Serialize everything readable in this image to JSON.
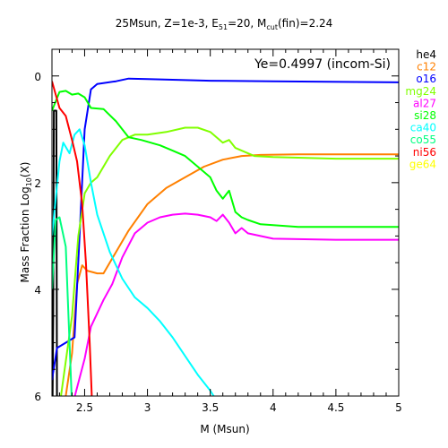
{
  "chart_data": {
    "type": "line",
    "title_main": "25Msun, Z=1e-3, E",
    "title_sub1": "51",
    "title_mid": "=20, M",
    "title_sub2": "cut",
    "title_end": "(fin)=2.24",
    "xlabel": "M (Msun)",
    "ylabel_main": "Mass Fraction Log",
    "ylabel_sub": "10",
    "ylabel_end": "(X)",
    "annotation": "Ye=0.4997 (incom-Si)",
    "xlim": [
      2.24,
      5
    ],
    "ylim": [
      -6,
      0.5
    ],
    "x_ticks": [
      2.5,
      3,
      3.5,
      4,
      4.5,
      5
    ],
    "x_tick_labels": [
      "2.5",
      "3",
      "3.5",
      "4",
      "4.5",
      "5"
    ],
    "y_ticks": [
      0,
      -2,
      -4,
      -6
    ],
    "y_tick_labels": [
      "0",
      "2",
      "4",
      "6"
    ],
    "series": [
      {
        "name": "he4",
        "color": "#000000",
        "points": [
          [
            2.24,
            -6.2
          ],
          [
            2.245,
            -6
          ],
          [
            2.25,
            -4.5
          ],
          [
            2.255,
            -0.65
          ],
          [
            2.275,
            -0.65
          ],
          [
            2.28,
            -6.2
          ]
        ]
      },
      {
        "name": "c12",
        "color": "#ff8000",
        "points": [
          [
            2.24,
            -6.2
          ],
          [
            2.3,
            -6.2
          ],
          [
            2.35,
            -6.0
          ],
          [
            2.4,
            -5.2
          ],
          [
            2.44,
            -3.9
          ],
          [
            2.48,
            -3.55
          ],
          [
            2.52,
            -3.65
          ],
          [
            2.6,
            -3.7
          ],
          [
            2.65,
            -3.7
          ],
          [
            2.75,
            -3.3
          ],
          [
            2.85,
            -2.9
          ],
          [
            3.0,
            -2.4
          ],
          [
            3.15,
            -2.1
          ],
          [
            3.3,
            -1.9
          ],
          [
            3.45,
            -1.7
          ],
          [
            3.6,
            -1.57
          ],
          [
            3.75,
            -1.5
          ],
          [
            3.9,
            -1.48
          ],
          [
            4.2,
            -1.47
          ],
          [
            5.0,
            -1.47
          ]
        ]
      },
      {
        "name": "o16",
        "color": "#0000ff",
        "points": [
          [
            2.24,
            -5.7
          ],
          [
            2.28,
            -5.1
          ],
          [
            2.35,
            -5.0
          ],
          [
            2.42,
            -4.9
          ],
          [
            2.46,
            -3.0
          ],
          [
            2.5,
            -1.0
          ],
          [
            2.55,
            -0.25
          ],
          [
            2.6,
            -0.15
          ],
          [
            2.75,
            -0.1
          ],
          [
            2.85,
            -0.05
          ],
          [
            3.0,
            -0.06
          ],
          [
            3.5,
            -0.09
          ],
          [
            4.0,
            -0.1
          ],
          [
            5.0,
            -0.12
          ]
        ]
      },
      {
        "name": "mg24",
        "color": "#80ff00",
        "points": [
          [
            2.24,
            -6.2
          ],
          [
            2.3,
            -6.2
          ],
          [
            2.4,
            -4.5
          ],
          [
            2.45,
            -3.0
          ],
          [
            2.5,
            -2.2
          ],
          [
            2.55,
            -2.0
          ],
          [
            2.6,
            -1.9
          ],
          [
            2.7,
            -1.5
          ],
          [
            2.8,
            -1.2
          ],
          [
            2.9,
            -1.1
          ],
          [
            3.0,
            -1.1
          ],
          [
            3.15,
            -1.05
          ],
          [
            3.3,
            -0.97
          ],
          [
            3.4,
            -0.97
          ],
          [
            3.5,
            -1.05
          ],
          [
            3.6,
            -1.25
          ],
          [
            3.65,
            -1.2
          ],
          [
            3.7,
            -1.35
          ],
          [
            3.75,
            -1.4
          ],
          [
            3.85,
            -1.5
          ],
          [
            4.0,
            -1.52
          ],
          [
            4.5,
            -1.55
          ],
          [
            5.0,
            -1.55
          ]
        ]
      },
      {
        "name": "al27",
        "color": "#ff00ff",
        "points": [
          [
            2.24,
            -6.2
          ],
          [
            2.4,
            -6.2
          ],
          [
            2.5,
            -5.3
          ],
          [
            2.55,
            -4.7
          ],
          [
            2.65,
            -4.2
          ],
          [
            2.72,
            -3.9
          ],
          [
            2.8,
            -3.4
          ],
          [
            2.9,
            -2.95
          ],
          [
            3.0,
            -2.75
          ],
          [
            3.1,
            -2.65
          ],
          [
            3.2,
            -2.6
          ],
          [
            3.3,
            -2.58
          ],
          [
            3.4,
            -2.6
          ],
          [
            3.5,
            -2.65
          ],
          [
            3.55,
            -2.72
          ],
          [
            3.6,
            -2.6
          ],
          [
            3.65,
            -2.75
          ],
          [
            3.7,
            -2.95
          ],
          [
            3.75,
            -2.85
          ],
          [
            3.8,
            -2.95
          ],
          [
            4.0,
            -3.05
          ],
          [
            4.5,
            -3.07
          ],
          [
            5.0,
            -3.07
          ]
        ]
      },
      {
        "name": "si28",
        "color": "#00ff00",
        "points": [
          [
            2.24,
            -0.65
          ],
          [
            2.3,
            -0.3
          ],
          [
            2.35,
            -0.28
          ],
          [
            2.4,
            -0.35
          ],
          [
            2.45,
            -0.33
          ],
          [
            2.5,
            -0.4
          ],
          [
            2.55,
            -0.6
          ],
          [
            2.65,
            -0.62
          ],
          [
            2.75,
            -0.85
          ],
          [
            2.85,
            -1.15
          ],
          [
            2.95,
            -1.2
          ],
          [
            3.1,
            -1.3
          ],
          [
            3.2,
            -1.4
          ],
          [
            3.3,
            -1.5
          ],
          [
            3.4,
            -1.7
          ],
          [
            3.5,
            -1.9
          ],
          [
            3.55,
            -2.15
          ],
          [
            3.6,
            -2.3
          ],
          [
            3.65,
            -2.15
          ],
          [
            3.7,
            -2.55
          ],
          [
            3.75,
            -2.65
          ],
          [
            3.8,
            -2.7
          ],
          [
            3.9,
            -2.78
          ],
          [
            4.2,
            -2.83
          ],
          [
            5.0,
            -2.83
          ]
        ]
      },
      {
        "name": "ca40",
        "color": "#00ffff",
        "points": [
          [
            2.24,
            -3.0
          ],
          [
            2.3,
            -1.6
          ],
          [
            2.33,
            -1.25
          ],
          [
            2.38,
            -1.45
          ],
          [
            2.42,
            -1.1
          ],
          [
            2.46,
            -1.0
          ],
          [
            2.5,
            -1.3
          ],
          [
            2.55,
            -2.0
          ],
          [
            2.6,
            -2.6
          ],
          [
            2.7,
            -3.3
          ],
          [
            2.8,
            -3.8
          ],
          [
            2.9,
            -4.15
          ],
          [
            3.0,
            -4.35
          ],
          [
            3.1,
            -4.6
          ],
          [
            3.2,
            -4.9
          ],
          [
            3.3,
            -5.25
          ],
          [
            3.4,
            -5.6
          ],
          [
            3.5,
            -5.9
          ],
          [
            3.58,
            -6.2
          ]
        ]
      },
      {
        "name": "co55",
        "color": "#00ff80",
        "points": [
          [
            2.24,
            -4.0
          ],
          [
            2.27,
            -2.7
          ],
          [
            2.3,
            -2.65
          ],
          [
            2.35,
            -3.2
          ],
          [
            2.38,
            -5.0
          ],
          [
            2.4,
            -6.2
          ]
        ]
      },
      {
        "name": "ni56",
        "color": "#ff0000",
        "points": [
          [
            2.24,
            -0.1
          ],
          [
            2.27,
            -0.35
          ],
          [
            2.3,
            -0.6
          ],
          [
            2.35,
            -0.75
          ],
          [
            2.4,
            -1.2
          ],
          [
            2.44,
            -1.6
          ],
          [
            2.48,
            -2.4
          ],
          [
            2.51,
            -3.5
          ],
          [
            2.54,
            -5.0
          ],
          [
            2.56,
            -6.2
          ]
        ]
      },
      {
        "name": "ge64",
        "color": "#ffff00",
        "points": []
      }
    ]
  }
}
